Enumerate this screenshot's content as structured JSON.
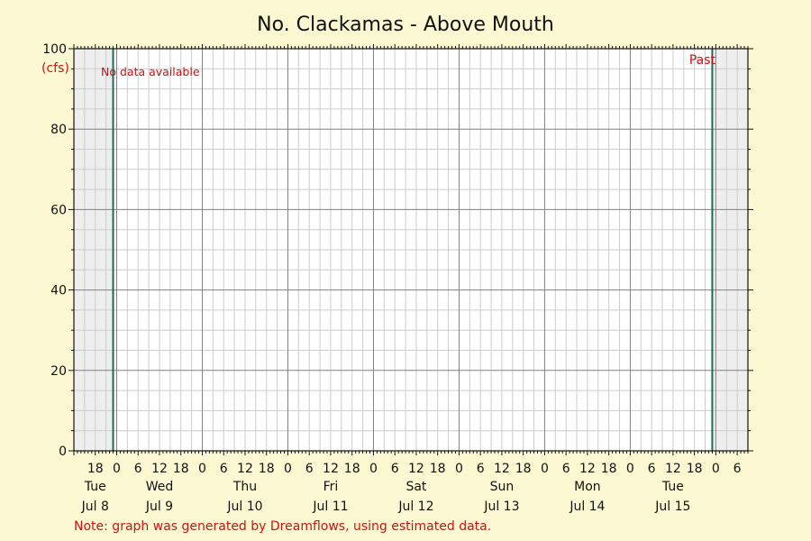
{
  "chart_data": {
    "type": "line",
    "title": "No. Clackamas - Above Mouth",
    "y_unit_label": "(cfs)",
    "ylim": [
      0,
      100
    ],
    "y_ticks": [
      0,
      20,
      40,
      60,
      80,
      100
    ],
    "x_range": [
      "Jul 8 12:00",
      "Jul 16 09:00"
    ],
    "x_hour_labels": [
      "18",
      "0",
      "6",
      "12",
      "18",
      "0",
      "6",
      "12",
      "18",
      "0",
      "6",
      "12",
      "18",
      "0",
      "6",
      "12",
      "18",
      "0",
      "6",
      "12",
      "18",
      "0",
      "6",
      "12",
      "18",
      "0",
      "6",
      "12",
      "18",
      "0",
      "6"
    ],
    "days": [
      {
        "weekday": "Tue",
        "date": "Jul 8"
      },
      {
        "weekday": "Wed",
        "date": "Jul 9"
      },
      {
        "weekday": "Thu",
        "date": "Jul 10"
      },
      {
        "weekday": "Fri",
        "date": "Jul 11"
      },
      {
        "weekday": "Sat",
        "date": "Jul 12"
      },
      {
        "weekday": "Sun",
        "date": "Jul 13"
      },
      {
        "weekday": "Mon",
        "date": "Jul 14"
      },
      {
        "weekday": "Tue",
        "date": "Jul 15"
      }
    ],
    "series": [],
    "grid": true,
    "marker_lines": [
      "Jul 8 23:00",
      "Jul 15 23:00"
    ],
    "shaded_regions": [
      [
        "Jul 8 12:00",
        "Jul 8 23:00"
      ],
      [
        "Jul 15 23:00",
        "Jul 16 09:00"
      ]
    ],
    "annotations": {
      "no_data": "No data available",
      "past": "Past"
    },
    "note": "Note: graph was generated by Dreamflows, using estimated data."
  },
  "colors": {
    "background": "#fcf9d2",
    "plot_area": "#ffffff",
    "shade": "#eeeeee",
    "grid_minor": "#cccccc",
    "grid_major": "#808080",
    "marker": "#1e6b55",
    "note": "#d01010"
  }
}
